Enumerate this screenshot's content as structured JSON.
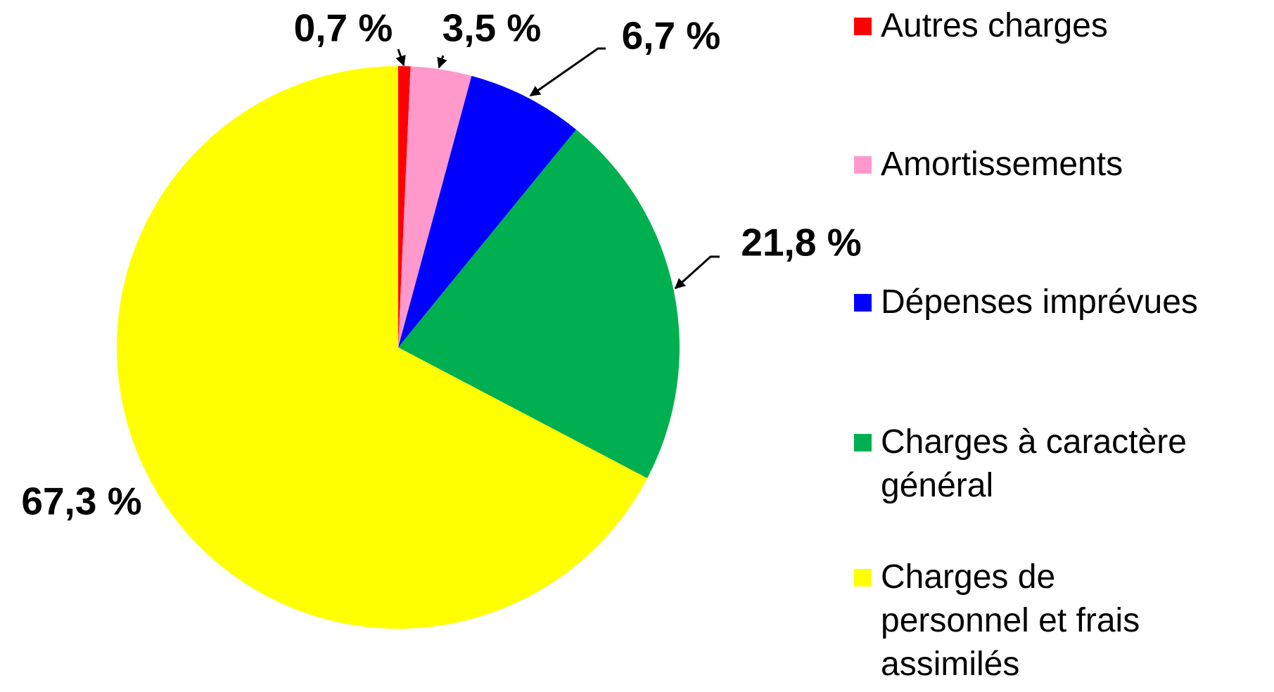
{
  "chart_data": {
    "type": "pie",
    "categories": [
      "Autres charges",
      "Amortissements",
      "Dépenses imprévues",
      "Charges à caractère général",
      "Charges de personnel et frais assimilés"
    ],
    "values": [
      0.7,
      3.5,
      6.7,
      21.8,
      67.3
    ],
    "value_labels": [
      "0,7 %",
      "3,5 %",
      "6,7 %",
      "21,8 %",
      "67,3 %"
    ],
    "colors": [
      "#ff0000",
      "#ff99cc",
      "#0000ff",
      "#00b050",
      "#ffff00"
    ],
    "legend": "right"
  }
}
